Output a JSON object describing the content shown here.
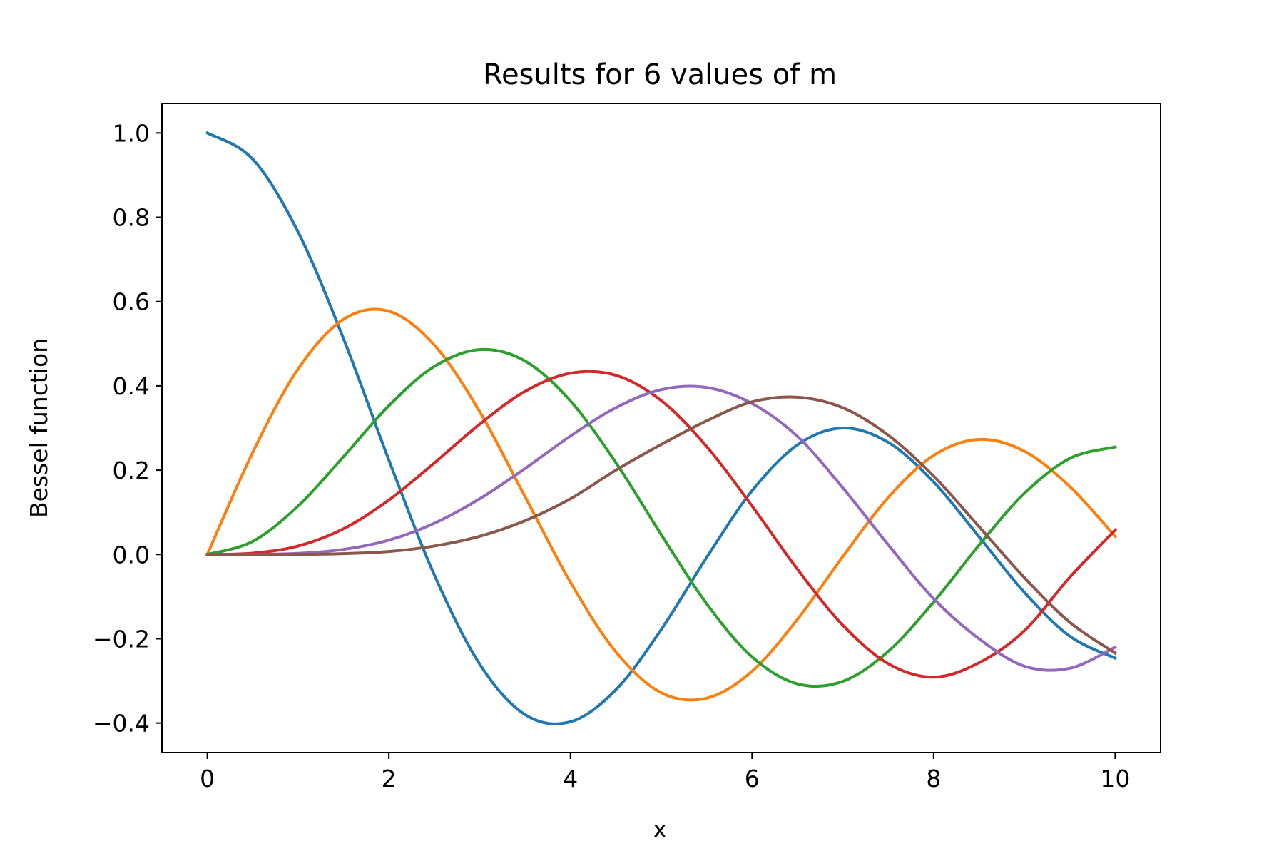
{
  "chart_data": {
    "type": "line",
    "title": "Results for 6 values of m",
    "xlabel": "x",
    "ylabel": "Bessel function",
    "xlim": [
      -0.5,
      10.5
    ],
    "ylim": [
      -0.47,
      1.07
    ],
    "xticks": [
      0,
      2,
      4,
      6,
      8,
      10
    ],
    "xtick_labels": [
      "0",
      "2",
      "4",
      "6",
      "8",
      "10"
    ],
    "yticks": [
      -0.4,
      -0.2,
      0.0,
      0.2,
      0.4,
      0.6,
      0.8,
      1.0
    ],
    "ytick_labels": [
      "−0.4",
      "−0.2",
      "0.0",
      "0.2",
      "0.4",
      "0.6",
      "0.8",
      "1.0"
    ],
    "grid": false,
    "legend": "none",
    "x": [
      0,
      0.5,
      1,
      1.5,
      2,
      2.5,
      3,
      3.5,
      4,
      4.5,
      5,
      5.5,
      6,
      6.5,
      7,
      7.5,
      8,
      8.5,
      9,
      9.5,
      10
    ],
    "series": [
      {
        "color": "#1f77b4",
        "values": [
          1.0,
          0.938,
          0.765,
          0.512,
          0.224,
          -0.048,
          -0.26,
          -0.38,
          -0.397,
          -0.321,
          -0.178,
          -0.007,
          0.151,
          0.26,
          0.3,
          0.266,
          0.172,
          0.042,
          -0.09,
          -0.194,
          -0.246
        ]
      },
      {
        "color": "#ff7f0e",
        "values": [
          0.0,
          0.242,
          0.44,
          0.558,
          0.577,
          0.497,
          0.339,
          0.137,
          -0.066,
          -0.231,
          -0.328,
          -0.341,
          -0.277,
          -0.154,
          -0.005,
          0.135,
          0.235,
          0.273,
          0.245,
          0.161,
          0.043
        ]
      },
      {
        "color": "#2ca02c",
        "values": [
          0.0,
          0.031,
          0.115,
          0.232,
          0.353,
          0.446,
          0.486,
          0.459,
          0.364,
          0.218,
          0.047,
          -0.117,
          -0.243,
          -0.307,
          -0.301,
          -0.23,
          -0.113,
          0.022,
          0.145,
          0.228,
          0.255
        ]
      },
      {
        "color": "#d62728",
        "values": [
          0.0,
          0.003,
          0.02,
          0.061,
          0.129,
          0.217,
          0.309,
          0.387,
          0.43,
          0.425,
          0.365,
          0.256,
          0.115,
          -0.035,
          -0.168,
          -0.259,
          -0.291,
          -0.257,
          -0.181,
          -0.054,
          0.058
        ]
      },
      {
        "color": "#9467bd",
        "values": [
          0.0,
          0.0002,
          0.0025,
          0.012,
          0.034,
          0.074,
          0.132,
          0.204,
          0.281,
          0.348,
          0.391,
          0.396,
          0.358,
          0.28,
          0.158,
          0.023,
          -0.105,
          -0.2,
          -0.265,
          -0.27,
          -0.22
        ]
      },
      {
        "color": "#8c564b",
        "values": [
          0.0,
          0.0,
          0.0002,
          0.002,
          0.007,
          0.02,
          0.043,
          0.08,
          0.132,
          0.2,
          0.261,
          0.317,
          0.362,
          0.373,
          0.348,
          0.283,
          0.186,
          0.066,
          -0.055,
          -0.161,
          -0.234
        ]
      }
    ]
  }
}
